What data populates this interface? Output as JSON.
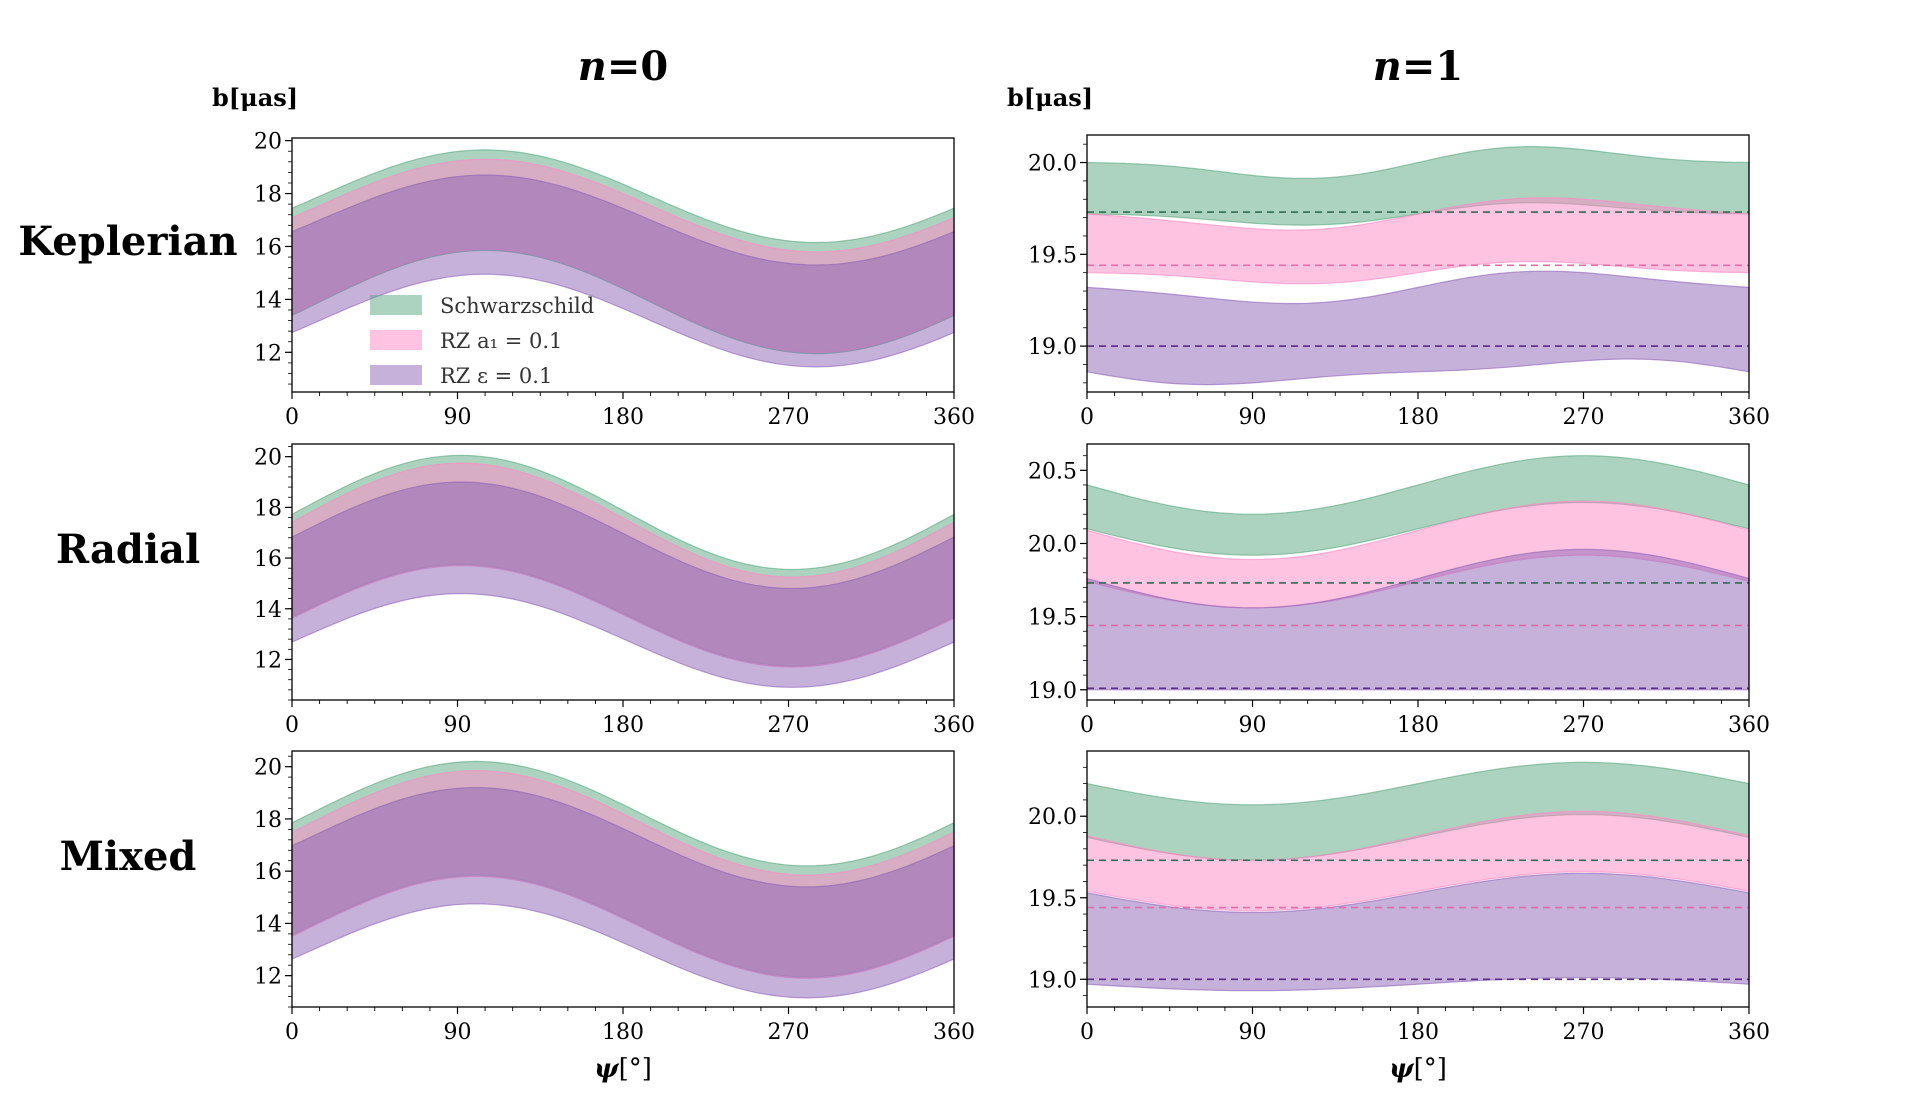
{
  "colors": {
    "schwarzschild": "#5aa77f",
    "rz_a1": "#ff88c6",
    "rz_eps": "#8e63b5",
    "dash_schw": "#2f6e52",
    "dash_a1": "#e86aa6",
    "dash_eps": "#5b2a8a"
  },
  "columns": [
    {
      "prefix": "n",
      "value": "=0"
    },
    {
      "prefix": "n",
      "value": "=1"
    }
  ],
  "rows": [
    "Keplerian",
    "Radial",
    "Mixed"
  ],
  "ylabel": "b[μas]",
  "xlabel": {
    "symbol": "ψ",
    "unit": "[°]"
  },
  "legend": [
    {
      "key": "schwarzschild",
      "label": "Schwarzschild"
    },
    {
      "key": "rz_a1",
      "label": "RZ a₁ = 0.1"
    },
    {
      "key": "rz_eps",
      "label": "RZ ε = 0.1"
    }
  ],
  "chart_data": [
    {
      "type": "area",
      "panel": "Keplerian n=0",
      "xlim": [
        0,
        360
      ],
      "ylim": [
        10.5,
        20.1
      ],
      "xticks": [
        0,
        90,
        180,
        270,
        360
      ],
      "yticks": [
        12,
        14,
        16,
        18,
        20
      ],
      "series": [
        {
          "name": "Schwarzschild",
          "key": "schwarzschild",
          "upper": {
            "c": 17.9,
            "a": 1.75,
            "b": 0.0,
            "phase": 105
          },
          "lower": {
            "c": 13.9,
            "a": 1.95,
            "b": 0.0,
            "phase": 105
          }
        },
        {
          "name": "RZ a1 = 0.1",
          "key": "rz_a1",
          "upper": {
            "c": 17.55,
            "a": 1.75,
            "b": 0.0,
            "phase": 105
          },
          "lower": {
            "c": 13.95,
            "a": 1.95,
            "b": 0.0,
            "phase": 105
          }
        },
        {
          "name": "RZ ε = 0.1",
          "key": "rz_eps",
          "upper": {
            "c": 17.0,
            "a": 1.7,
            "b": 0.0,
            "phase": 105
          },
          "lower": {
            "c": 13.2,
            "a": 1.75,
            "b": 0.0,
            "phase": 105
          }
        }
      ]
    },
    {
      "type": "area",
      "panel": "Keplerian n=1",
      "xlim": [
        0,
        360
      ],
      "ylim": [
        18.75,
        20.15
      ],
      "xticks": [
        0,
        90,
        180,
        270,
        360
      ],
      "yticks": [
        19.0,
        19.5,
        20.0
      ],
      "ytick_fmt": 1,
      "dashed": {
        "schwarzschild": 19.73,
        "rz_a1": 19.44,
        "rz_eps": 19.0
      },
      "series": [
        {
          "name": "Schwarzschild",
          "key": "schwarzschild",
          "upper": {
            "c": 20.0,
            "a": 0.07,
            "b": -0.03,
            "phase": 270
          },
          "lower": {
            "c": 19.72,
            "a": 0.05,
            "b": -0.02,
            "phase": 270
          }
        },
        {
          "name": "RZ a1 = 0.1",
          "key": "rz_a1",
          "upper": {
            "c": 19.72,
            "a": 0.08,
            "b": -0.02,
            "phase": 270
          },
          "lower": {
            "c": 19.4,
            "a": 0.05,
            "b": -0.02,
            "phase": 270
          }
        },
        {
          "name": "RZ ε = 0.1",
          "key": "rz_eps",
          "upper": {
            "c": 19.32,
            "a": 0.08,
            "b": -0.02,
            "phase": 270
          },
          "lower": {
            "c": 18.86,
            "a": 0.06,
            "b": 0.02,
            "phase": 270
          }
        }
      ]
    },
    {
      "type": "area",
      "panel": "Radial n=0",
      "xlim": [
        0,
        360
      ],
      "ylim": [
        10.4,
        20.5
      ],
      "xticks": [
        0,
        90,
        180,
        270,
        360
      ],
      "yticks": [
        12,
        14,
        16,
        18,
        20
      ],
      "series": [
        {
          "name": "Schwarzschild",
          "key": "schwarzschild",
          "upper": {
            "c": 17.8,
            "a": 2.25,
            "b": 0.0,
            "phase": 92
          },
          "lower": {
            "c": 13.75,
            "a": 2.0,
            "b": 0.0,
            "phase": 92
          }
        },
        {
          "name": "RZ a1 = 0.1",
          "key": "rz_a1",
          "upper": {
            "c": 17.5,
            "a": 2.25,
            "b": 0.0,
            "phase": 92
          },
          "lower": {
            "c": 13.7,
            "a": 2.0,
            "b": 0.0,
            "phase": 92
          }
        },
        {
          "name": "RZ ε = 0.1",
          "key": "rz_eps",
          "upper": {
            "c": 16.9,
            "a": 2.1,
            "b": 0.0,
            "phase": 92
          },
          "lower": {
            "c": 12.75,
            "a": 1.85,
            "b": 0.0,
            "phase": 92
          }
        }
      ]
    },
    {
      "type": "area",
      "panel": "Radial n=1",
      "xlim": [
        0,
        360
      ],
      "ylim": [
        18.93,
        20.68
      ],
      "xticks": [
        0,
        90,
        180,
        270,
        360
      ],
      "yticks": [
        19.0,
        19.5,
        20.0,
        20.5
      ],
      "ytick_fmt": 1,
      "dashed": {
        "schwarzschild": 19.73,
        "rz_a1": 19.44,
        "rz_eps": 19.01
      },
      "series": [
        {
          "name": "Schwarzschild",
          "key": "schwarzschild",
          "upper": {
            "c": 20.4,
            "a": 0.2,
            "b": 0.0,
            "phase": 270
          },
          "lower": {
            "c": 20.1,
            "a": 0.18,
            "b": 0.0,
            "phase": 270
          }
        },
        {
          "name": "RZ a1 = 0.1",
          "key": "rz_a1",
          "upper": {
            "c": 20.09,
            "a": 0.2,
            "b": 0.0,
            "phase": 270
          },
          "lower": {
            "c": 19.74,
            "a": 0.18,
            "b": 0.0,
            "phase": 270
          }
        },
        {
          "name": "RZ ε = 0.1",
          "key": "rz_eps",
          "upper": {
            "c": 19.76,
            "a": 0.2,
            "b": 0.0,
            "phase": 270
          },
          "lower": {
            "c": 19.0,
            "a": 0.0,
            "b": 0.0,
            "phase": 270
          }
        }
      ]
    },
    {
      "type": "area",
      "panel": "Mixed n=0",
      "xlim": [
        0,
        360
      ],
      "ylim": [
        10.8,
        20.6
      ],
      "xticks": [
        0,
        90,
        180,
        270,
        360
      ],
      "yticks": [
        12,
        14,
        16,
        18,
        20
      ],
      "series": [
        {
          "name": "Schwarzschild",
          "key": "schwarzschild",
          "upper": {
            "c": 18.2,
            "a": 2.0,
            "b": 0.0,
            "phase": 100
          },
          "lower": {
            "c": 13.9,
            "a": 1.95,
            "b": 0.0,
            "phase": 100
          }
        },
        {
          "name": "RZ a1 = 0.1",
          "key": "rz_a1",
          "upper": {
            "c": 17.85,
            "a": 2.0,
            "b": 0.0,
            "phase": 100
          },
          "lower": {
            "c": 13.85,
            "a": 1.95,
            "b": 0.0,
            "phase": 100
          }
        },
        {
          "name": "RZ ε = 0.1",
          "key": "rz_eps",
          "upper": {
            "c": 17.3,
            "a": 1.9,
            "b": 0.0,
            "phase": 100
          },
          "lower": {
            "c": 12.95,
            "a": 1.8,
            "b": 0.0,
            "phase": 100
          }
        }
      ]
    },
    {
      "type": "area",
      "panel": "Mixed n=1",
      "xlim": [
        0,
        360
      ],
      "ylim": [
        18.83,
        20.4
      ],
      "xticks": [
        0,
        90,
        180,
        270,
        360
      ],
      "yticks": [
        19.0,
        19.5,
        20.0
      ],
      "ytick_fmt": 1,
      "dashed": {
        "schwarzschild": 19.73,
        "rz_a1": 19.44,
        "rz_eps": 19.0
      },
      "series": [
        {
          "name": "Schwarzschild",
          "key": "schwarzschild",
          "upper": {
            "c": 20.2,
            "a": 0.13,
            "b": 0.0,
            "phase": 270
          },
          "lower": {
            "c": 19.87,
            "a": 0.14,
            "b": 0.0,
            "phase": 270
          }
        },
        {
          "name": "RZ a1 = 0.1",
          "key": "rz_a1",
          "upper": {
            "c": 19.88,
            "a": 0.15,
            "b": 0.0,
            "phase": 270
          },
          "lower": {
            "c": 19.54,
            "a": 0.12,
            "b": 0.0,
            "phase": 270
          }
        },
        {
          "name": "RZ ε = 0.1",
          "key": "rz_eps",
          "upper": {
            "c": 19.53,
            "a": 0.12,
            "b": 0.0,
            "phase": 270
          },
          "lower": {
            "c": 18.97,
            "a": 0.04,
            "b": 0.0,
            "phase": 270
          }
        }
      ]
    }
  ]
}
